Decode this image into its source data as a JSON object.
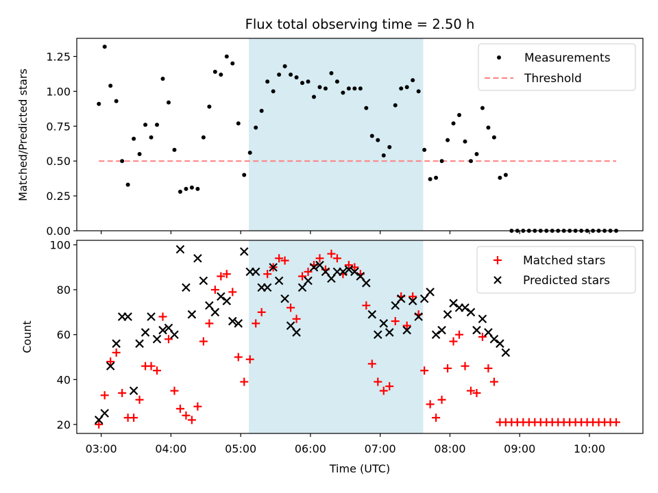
{
  "figure": {
    "title": "Flux total observing time = 2.50 h"
  },
  "colors": {
    "measurement": "#000000",
    "threshold": "#ff7f7f",
    "matched": "#ff0000",
    "predicted": "#000000",
    "span": "#add8e6"
  },
  "chart_data": [
    {
      "type": "scatter",
      "ylabel": "Matched/Predicted stars",
      "xlabel": "",
      "ylim": [
        0,
        1.38
      ],
      "yticks": [
        0.0,
        0.25,
        0.5,
        0.75,
        1.0,
        1.25
      ],
      "ytick_labels": [
        "0.00",
        "0.25",
        "0.50",
        "0.75",
        "1.00",
        "1.25"
      ],
      "xlim": [
        "02:39",
        "10:46"
      ],
      "xtick_labels": [],
      "highlight_span": [
        "05:07",
        "07:37"
      ],
      "legend_position": "upper right",
      "series": [
        {
          "name": "Measurements",
          "marker": "dot",
          "x": [
            "02:58",
            "03:03",
            "03:08",
            "03:13",
            "03:18",
            "03:23",
            "03:28",
            "03:33",
            "03:38",
            "03:43",
            "03:48",
            "03:53",
            "03:58",
            "04:03",
            "04:08",
            "04:13",
            "04:18",
            "04:23",
            "04:28",
            "04:33",
            "04:38",
            "04:43",
            "04:48",
            "04:53",
            "04:58",
            "05:03",
            "05:08",
            "05:13",
            "05:18",
            "05:23",
            "05:28",
            "05:33",
            "05:38",
            "05:43",
            "05:48",
            "05:53",
            "05:58",
            "06:03",
            "06:08",
            "06:13",
            "06:18",
            "06:23",
            "06:28",
            "06:33",
            "06:38",
            "06:43",
            "06:48",
            "06:53",
            "06:58",
            "07:03",
            "07:08",
            "07:13",
            "07:18",
            "07:23",
            "07:28",
            "07:33",
            "07:38",
            "07:43",
            "07:48",
            "07:53",
            "07:58",
            "08:03",
            "08:08",
            "08:13",
            "08:18",
            "08:23",
            "08:28",
            "08:33",
            "08:38",
            "08:43",
            "08:48",
            "08:53",
            "08:58",
            "09:03",
            "09:08",
            "09:13",
            "09:18",
            "09:23",
            "09:28",
            "09:33",
            "09:38",
            "09:43",
            "09:48",
            "09:53",
            "09:58",
            "10:03",
            "10:08",
            "10:13",
            "10:18",
            "10:23"
          ],
          "y": [
            0.91,
            1.32,
            1.04,
            0.93,
            0.5,
            0.33,
            0.66,
            0.55,
            0.76,
            0.67,
            0.76,
            1.09,
            0.92,
            0.58,
            0.28,
            0.3,
            0.31,
            0.3,
            0.67,
            0.89,
            1.14,
            1.12,
            1.25,
            1.2,
            0.77,
            0.4,
            0.56,
            0.74,
            0.86,
            1.07,
            1.0,
            1.12,
            1.18,
            1.12,
            1.1,
            1.06,
            1.07,
            0.96,
            1.03,
            1.02,
            1.13,
            1.07,
            0.99,
            1.02,
            1.02,
            1.02,
            0.88,
            0.68,
            0.65,
            0.54,
            0.6,
            0.9,
            1.02,
            1.03,
            1.08,
            1.0,
            0.58,
            0.37,
            0.38,
            0.5,
            0.65,
            0.77,
            0.83,
            0.64,
            0.5,
            0.55,
            0.88,
            0.74,
            0.67,
            0.38,
            0.4,
            0.0,
            0.0,
            0.0,
            0.0,
            0.0,
            0.0,
            0.0,
            0.0,
            0.0,
            0.0,
            0.0,
            0.0,
            0.0,
            0.0,
            0.0,
            0.0,
            0.0,
            0.0,
            0.0
          ]
        },
        {
          "name": "Threshold",
          "marker": "dashed-line",
          "x": [
            "02:58",
            "10:23"
          ],
          "y": [
            0.5,
            0.5
          ]
        }
      ]
    },
    {
      "type": "scatter",
      "ylabel": "Count",
      "xlabel": "Time (UTC)",
      "ylim": [
        16,
        102
      ],
      "yticks": [
        20,
        40,
        60,
        80,
        100
      ],
      "ytick_labels": [
        "20",
        "40",
        "60",
        "80",
        "100"
      ],
      "xlim": [
        "02:39",
        "10:46"
      ],
      "xticks": [
        "03:00",
        "04:00",
        "05:00",
        "06:00",
        "07:00",
        "08:00",
        "09:00",
        "10:00"
      ],
      "xtick_labels": [
        "03:00",
        "04:00",
        "05:00",
        "06:00",
        "07:00",
        "08:00",
        "09:00",
        "10:00"
      ],
      "highlight_span": [
        "05:07",
        "07:37"
      ],
      "legend_position": "upper right",
      "series": [
        {
          "name": "Matched stars",
          "marker": "plus",
          "x": [
            "02:58",
            "03:03",
            "03:08",
            "03:13",
            "03:18",
            "03:23",
            "03:28",
            "03:33",
            "03:38",
            "03:43",
            "03:48",
            "03:53",
            "03:58",
            "04:03",
            "04:08",
            "04:13",
            "04:18",
            "04:23",
            "04:28",
            "04:33",
            "04:38",
            "04:43",
            "04:48",
            "04:53",
            "04:58",
            "05:03",
            "05:08",
            "05:13",
            "05:18",
            "05:23",
            "05:28",
            "05:33",
            "05:38",
            "05:43",
            "05:48",
            "05:53",
            "05:58",
            "06:03",
            "06:08",
            "06:13",
            "06:18",
            "06:23",
            "06:28",
            "06:33",
            "06:38",
            "06:43",
            "06:48",
            "06:53",
            "06:58",
            "07:03",
            "07:08",
            "07:13",
            "07:18",
            "07:23",
            "07:28",
            "07:33",
            "07:38",
            "07:43",
            "07:48",
            "07:53",
            "07:58",
            "08:03",
            "08:08",
            "08:13",
            "08:18",
            "08:23",
            "08:28",
            "08:33",
            "08:38",
            "08:43",
            "08:48",
            "08:53",
            "08:58",
            "09:03",
            "09:08",
            "09:13",
            "09:18",
            "09:23",
            "09:28",
            "09:33",
            "09:38",
            "09:43",
            "09:48",
            "09:53",
            "09:58",
            "10:03",
            "10:08",
            "10:13",
            "10:18",
            "10:23"
          ],
          "y": [
            20,
            33,
            48,
            52,
            34,
            23,
            23,
            31,
            46,
            46,
            44,
            68,
            58,
            35,
            27,
            24,
            22,
            28,
            57,
            65,
            80,
            86,
            87,
            79,
            50,
            39,
            49,
            65,
            70,
            87,
            90,
            94,
            93,
            72,
            67,
            86,
            88,
            91,
            94,
            89,
            96,
            94,
            87,
            91,
            90,
            87,
            73,
            47,
            39,
            35,
            37,
            66,
            77,
            64,
            77,
            69,
            44,
            29,
            23,
            31,
            45,
            57,
            60,
            46,
            35,
            34,
            59,
            45,
            39,
            21,
            21,
            21,
            21,
            21,
            21,
            21,
            21,
            21,
            21,
            21,
            21,
            21,
            21,
            21,
            21,
            21,
            21,
            21,
            21,
            21
          ]
        },
        {
          "name": "Predicted stars",
          "marker": "x",
          "x": [
            "02:58",
            "03:03",
            "03:08",
            "03:13",
            "03:18",
            "03:23",
            "03:28",
            "03:33",
            "03:38",
            "03:43",
            "03:48",
            "03:53",
            "03:58",
            "04:03",
            "04:08",
            "04:13",
            "04:18",
            "04:23",
            "04:28",
            "04:33",
            "04:38",
            "04:43",
            "04:48",
            "04:53",
            "04:58",
            "05:03",
            "05:08",
            "05:13",
            "05:18",
            "05:23",
            "05:28",
            "05:33",
            "05:38",
            "05:43",
            "05:48",
            "05:53",
            "05:58",
            "06:03",
            "06:08",
            "06:13",
            "06:18",
            "06:23",
            "06:28",
            "06:33",
            "06:38",
            "06:43",
            "06:48",
            "06:53",
            "06:58",
            "07:03",
            "07:08",
            "07:13",
            "07:18",
            "07:23",
            "07:28",
            "07:33",
            "07:38",
            "07:43",
            "07:48",
            "07:53",
            "07:58",
            "08:03",
            "08:08",
            "08:13",
            "08:18",
            "08:23",
            "08:28",
            "08:33",
            "08:38",
            "08:43",
            "08:48"
          ],
          "y": [
            22,
            25,
            46,
            56,
            68,
            68,
            35,
            56,
            61,
            68,
            58,
            62,
            63,
            60,
            98,
            81,
            69,
            94,
            84,
            73,
            70,
            77,
            75,
            66,
            65,
            97,
            88,
            88,
            81,
            81,
            90,
            84,
            76,
            64,
            61,
            81,
            84,
            90,
            91,
            88,
            85,
            88,
            88,
            89,
            88,
            86,
            83,
            69,
            60,
            65,
            61,
            73,
            76,
            62,
            75,
            68,
            76,
            79,
            60,
            62,
            69,
            74,
            72,
            72,
            70,
            62,
            67,
            61,
            58,
            56,
            52
          ]
        }
      ]
    }
  ]
}
